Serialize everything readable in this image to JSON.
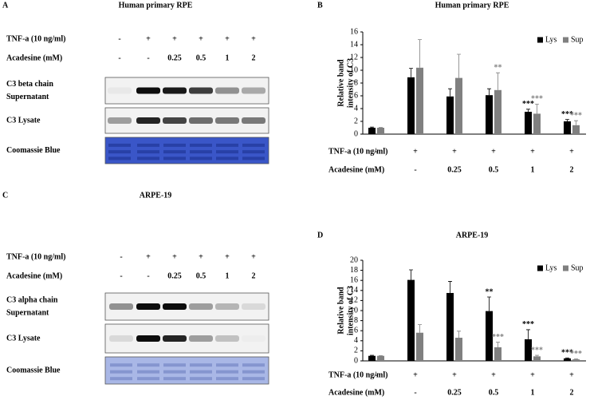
{
  "blots": [
    {
      "panel": "A",
      "title": "Human primary RPE",
      "conditions": [
        {
          "label": "TNF-a (10 ng/ml)",
          "values": [
            "-",
            "+",
            "+",
            "+",
            "+",
            "+"
          ]
        },
        {
          "label": "Acadesine (mM)",
          "values": [
            "-",
            "-",
            "0.25",
            "0.5",
            "1",
            "2"
          ]
        }
      ],
      "rows": [
        [
          "C3 beta chain",
          "Supernatant"
        ],
        [
          "C3 Lysate"
        ],
        [
          "Coomassie Blue"
        ]
      ]
    },
    {
      "panel": "C",
      "title": "ARPE-19",
      "conditions": [
        {
          "label": "TNF-a (10 ng/ml)",
          "values": [
            "-",
            "+",
            "+",
            "+",
            "+",
            "+"
          ]
        },
        {
          "label": "Acadesine (mM)",
          "values": [
            "-",
            "-",
            "0.25",
            "0.5",
            "1",
            "2"
          ]
        }
      ],
      "rows": [
        [
          "C3 alpha chain",
          "Supernatant"
        ],
        [
          "C3 Lysate"
        ],
        [
          "Coomassie Blue"
        ]
      ]
    }
  ],
  "chart_data": [
    {
      "type": "bar",
      "panel": "B",
      "title": "Human primary RPE",
      "ylabel": [
        "Relative band",
        "intensity of C3"
      ],
      "ylim": [
        0,
        16
      ],
      "yticks": [
        0,
        2,
        4,
        6,
        8,
        10,
        12,
        14,
        16
      ],
      "legend": "top-right",
      "conditions": [
        {
          "label": "TNF-a (10 ng/ml)",
          "values": [
            "-",
            "+",
            "+",
            "+",
            "+",
            "+"
          ]
        },
        {
          "label": "Acadesine (mM)",
          "values": [
            "-",
            "-",
            "0.25",
            "0.5",
            "1",
            "2"
          ]
        }
      ],
      "series": [
        {
          "name": "Lys",
          "color": "#000000",
          "values": [
            1.0,
            8.9,
            5.9,
            6.1,
            3.5,
            2.0
          ],
          "errors": [
            0.1,
            1.4,
            1.2,
            1.0,
            0.4,
            0.3
          ],
          "annotations": [
            null,
            null,
            null,
            null,
            "***",
            "***"
          ]
        },
        {
          "name": "Sup",
          "color": "#808080",
          "values": [
            1.0,
            10.4,
            8.8,
            6.9,
            3.2,
            1.4
          ],
          "errors": [
            0.05,
            4.4,
            3.7,
            2.7,
            1.5,
            0.7
          ],
          "annotations": [
            null,
            null,
            null,
            "**",
            "***",
            "***"
          ]
        }
      ]
    },
    {
      "type": "bar",
      "panel": "D",
      "title": "ARPE-19",
      "ylabel": [
        "Relative band",
        "intensity of C3"
      ],
      "ylim": [
        0,
        20
      ],
      "yticks": [
        0,
        2,
        4,
        6,
        8,
        10,
        12,
        14,
        16,
        18,
        20
      ],
      "legend": "top-right",
      "conditions": [
        {
          "label": "TNF-a (10 ng/ml)",
          "values": [
            "-",
            "+",
            "+",
            "+",
            "+",
            "+"
          ]
        },
        {
          "label": "Acadesine (mM)",
          "values": [
            "-",
            "-",
            "0.25",
            "0.5",
            "1",
            "2"
          ]
        }
      ],
      "series": [
        {
          "name": "Lys",
          "color": "#000000",
          "values": [
            1.0,
            16.1,
            13.5,
            9.9,
            4.3,
            0.5
          ],
          "errors": [
            0.1,
            2.0,
            2.3,
            2.8,
            1.9,
            0.1
          ],
          "annotations": [
            null,
            null,
            null,
            "**",
            "***",
            "***"
          ]
        },
        {
          "name": "Sup",
          "color": "#808080",
          "values": [
            1.0,
            5.6,
            4.6,
            2.7,
            0.9,
            0.3
          ],
          "errors": [
            0.05,
            1.6,
            1.3,
            1.0,
            0.2,
            0.1
          ],
          "annotations": [
            null,
            null,
            null,
            "***",
            "***",
            "***"
          ]
        }
      ]
    }
  ]
}
